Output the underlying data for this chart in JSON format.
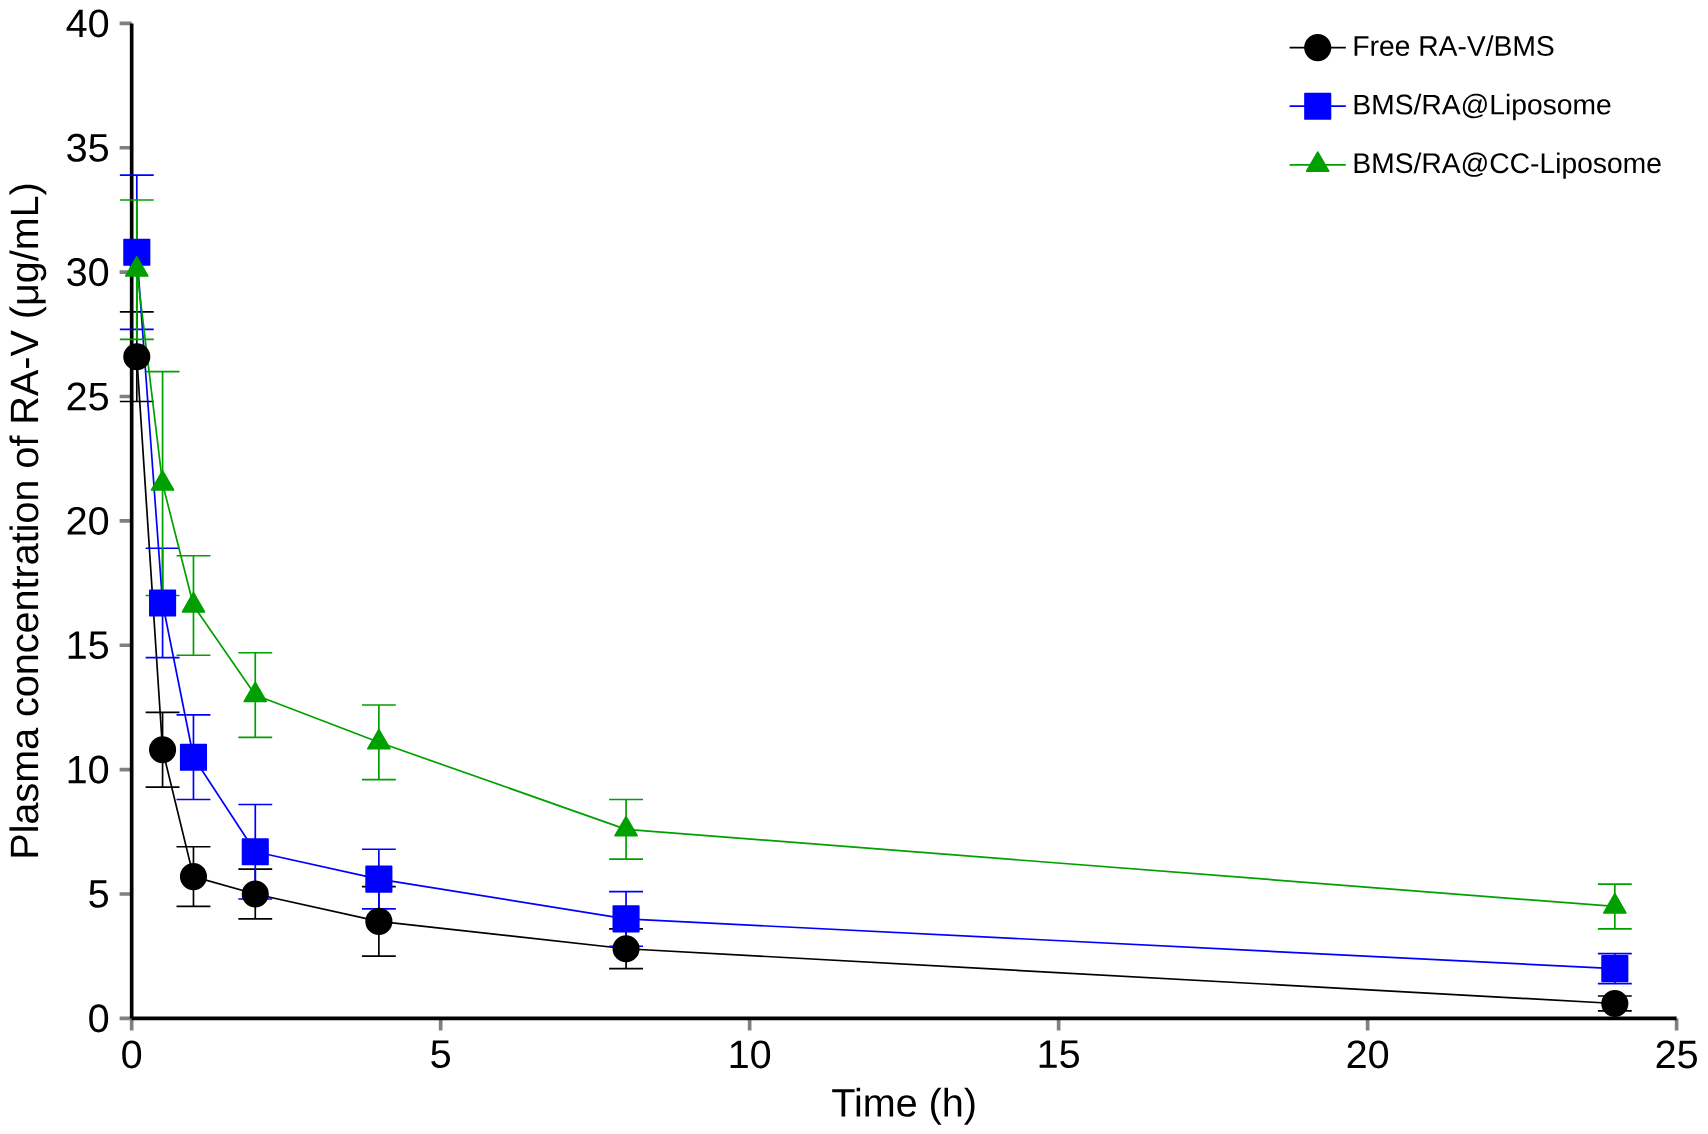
{
  "chart_data": {
    "type": "line",
    "xlabel": "Time (h)",
    "ylabel": "Plasma concentration of RA-V (μg/mL)",
    "xlim": [
      0,
      25
    ],
    "xticks": [
      0,
      5,
      10,
      15,
      20,
      25
    ],
    "ylim": [
      0,
      40
    ],
    "yticks": [
      0,
      5,
      10,
      15,
      20,
      25,
      30,
      35,
      40
    ],
    "legend": "top right",
    "grid": false,
    "line_style": "solid",
    "series": [
      {
        "name": "Free RA-V/BMS",
        "color": "#000000",
        "marker": "circle",
        "x": [
          0.083,
          0.5,
          1,
          2,
          4,
          8,
          24
        ],
        "values": [
          26.6,
          10.8,
          5.7,
          5.0,
          3.9,
          2.8,
          0.6
        ],
        "errors": [
          1.8,
          1.5,
          1.2,
          1.0,
          1.4,
          0.8,
          0.3
        ]
      },
      {
        "name": "BMS/RA@Liposome",
        "color": "#0000ff",
        "marker": "square",
        "x": [
          0.083,
          0.5,
          1,
          2,
          4,
          8,
          24
        ],
        "values": [
          30.8,
          16.7,
          10.5,
          6.7,
          5.6,
          4.0,
          2.0
        ],
        "errors": [
          3.1,
          2.2,
          1.7,
          1.9,
          1.2,
          1.1,
          0.6
        ]
      },
      {
        "name": "BMS/RA@CC-Liposome",
        "color": "#00a000",
        "marker": "triangle",
        "x": [
          0.083,
          0.5,
          1,
          2,
          4,
          8,
          24
        ],
        "values": [
          30.1,
          21.5,
          16.6,
          13.0,
          11.1,
          7.6,
          4.5
        ],
        "errors": [
          2.8,
          4.5,
          2.0,
          1.7,
          1.5,
          1.2,
          0.9
        ]
      }
    ]
  }
}
